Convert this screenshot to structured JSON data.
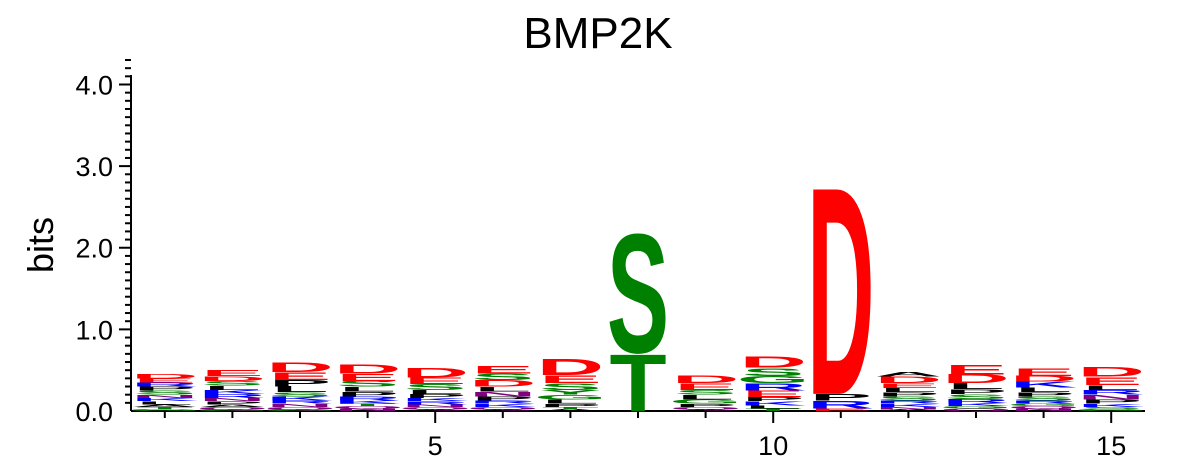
{
  "chart_data": {
    "type": "sequence-logo",
    "title": "BMP2K",
    "ylabel": "bits",
    "xlabel": "",
    "ylim": [
      0,
      4.3
    ],
    "xlim": [
      0.5,
      15.5
    ],
    "y_ticks": [
      0,
      1,
      2,
      3,
      4
    ],
    "y_tick_labels": [
      "0.0",
      "1.0",
      "2.0",
      "3.0",
      "4.0"
    ],
    "x_ticks": [
      5,
      10,
      15
    ],
    "x_tick_labels": [
      "5",
      "10",
      "15"
    ],
    "colors": {
      "acidic": "#ff0000",
      "polar": "#008000",
      "basic": "#0000ff",
      "hydrophobic": "#000000",
      "amide": "#800080"
    },
    "positions": [
      {
        "pos": 1,
        "letters": [
          [
            "G",
            0.02
          ],
          [
            "T",
            0.03
          ],
          [
            "A",
            0.03
          ],
          [
            "L",
            0.04
          ],
          [
            "K",
            0.04
          ],
          [
            "N",
            0.04
          ],
          [
            "S",
            0.05
          ],
          [
            "P",
            0.05
          ],
          [
            "R",
            0.05
          ],
          [
            "E",
            0.05
          ],
          [
            "D",
            0.06
          ]
        ]
      },
      {
        "pos": 2,
        "letters": [
          [
            "G",
            0.02
          ],
          [
            "Q",
            0.03
          ],
          [
            "A",
            0.03
          ],
          [
            "P",
            0.04
          ],
          [
            "N",
            0.04
          ],
          [
            "R",
            0.05
          ],
          [
            "K",
            0.05
          ],
          [
            "L",
            0.05
          ],
          [
            "S",
            0.06
          ],
          [
            "D",
            0.06
          ],
          [
            "E",
            0.07
          ]
        ]
      },
      {
        "pos": 3,
        "letters": [
          [
            "G",
            0.02
          ],
          [
            "Q",
            0.03
          ],
          [
            "N",
            0.04
          ],
          [
            "R",
            0.04
          ],
          [
            "K",
            0.05
          ],
          [
            "S",
            0.05
          ],
          [
            "L",
            0.07
          ],
          [
            "P",
            0.08
          ],
          [
            "E",
            0.1
          ],
          [
            "D",
            0.12
          ]
        ]
      },
      {
        "pos": 4,
        "letters": [
          [
            "N",
            0.03
          ],
          [
            "Q",
            0.03
          ],
          [
            "T",
            0.03
          ],
          [
            "K",
            0.04
          ],
          [
            "R",
            0.05
          ],
          [
            "P",
            0.06
          ],
          [
            "L",
            0.06
          ],
          [
            "S",
            0.07
          ],
          [
            "E",
            0.09
          ],
          [
            "D",
            0.11
          ]
        ]
      },
      {
        "pos": 5,
        "letters": [
          [
            "A",
            0.02
          ],
          [
            "Q",
            0.03
          ],
          [
            "N",
            0.03
          ],
          [
            "R",
            0.04
          ],
          [
            "K",
            0.04
          ],
          [
            "P",
            0.05
          ],
          [
            "L",
            0.05
          ],
          [
            "S",
            0.07
          ],
          [
            "E",
            0.08
          ],
          [
            "D",
            0.12
          ]
        ]
      },
      {
        "pos": 6,
        "letters": [
          [
            "A",
            0.02
          ],
          [
            "Q",
            0.03
          ],
          [
            "K",
            0.04
          ],
          [
            "R",
            0.04
          ],
          [
            "P",
            0.05
          ],
          [
            "N",
            0.06
          ],
          [
            "L",
            0.06
          ],
          [
            "D",
            0.08
          ],
          [
            "S",
            0.08
          ],
          [
            "E",
            0.1
          ]
        ]
      },
      {
        "pos": 7,
        "letters": [
          [
            "A",
            0.02
          ],
          [
            "T",
            0.03
          ],
          [
            "P",
            0.04
          ],
          [
            "L",
            0.05
          ],
          [
            "G",
            0.06
          ],
          [
            "Y",
            0.06
          ],
          [
            "S",
            0.08
          ],
          [
            "E",
            0.1
          ],
          [
            "D",
            0.2
          ]
        ]
      },
      {
        "pos": 8,
        "letters": [
          [
            "T",
            0.72
          ],
          [
            "S",
            1.5
          ]
        ]
      },
      {
        "pos": 9,
        "letters": [
          [
            "A",
            0.02
          ],
          [
            "Q",
            0.03
          ],
          [
            "P",
            0.04
          ],
          [
            "G",
            0.05
          ],
          [
            "L",
            0.06
          ],
          [
            "S",
            0.06
          ],
          [
            "E",
            0.08
          ],
          [
            "D",
            0.1
          ]
        ]
      },
      {
        "pos": 10,
        "letters": [
          [
            "T",
            0.03
          ],
          [
            "L",
            0.04
          ],
          [
            "K",
            0.05
          ],
          [
            "P",
            0.05
          ],
          [
            "E",
            0.08
          ],
          [
            "R",
            0.09
          ],
          [
            "G",
            0.09
          ],
          [
            "S",
            0.1
          ],
          [
            "D",
            0.14
          ]
        ]
      },
      {
        "pos": 11,
        "letters": [
          [
            "E",
            0.03
          ],
          [
            "R",
            0.1
          ],
          [
            "P",
            0.08
          ],
          [
            "D",
            2.62
          ]
        ]
      },
      {
        "pos": 12,
        "letters": [
          [
            "A",
            0.02
          ],
          [
            "N",
            0.03
          ],
          [
            "K",
            0.04
          ],
          [
            "R",
            0.04
          ],
          [
            "S",
            0.05
          ],
          [
            "P",
            0.05
          ],
          [
            "L",
            0.05
          ],
          [
            "E",
            0.06
          ],
          [
            "D",
            0.08
          ],
          [
            "A",
            0.06
          ]
        ]
      },
      {
        "pos": 13,
        "letters": [
          [
            "Q",
            0.03
          ],
          [
            "G",
            0.03
          ],
          [
            "K",
            0.04
          ],
          [
            "R",
            0.05
          ],
          [
            "S",
            0.06
          ],
          [
            "P",
            0.06
          ],
          [
            "L",
            0.07
          ],
          [
            "D",
            0.11
          ],
          [
            "E",
            0.12
          ]
        ]
      },
      {
        "pos": 14,
        "letters": [
          [
            "N",
            0.03
          ],
          [
            "Q",
            0.03
          ],
          [
            "G",
            0.03
          ],
          [
            "R",
            0.04
          ],
          [
            "S",
            0.05
          ],
          [
            "P",
            0.05
          ],
          [
            "L",
            0.06
          ],
          [
            "K",
            0.07
          ],
          [
            "D",
            0.07
          ],
          [
            "E",
            0.1
          ]
        ]
      },
      {
        "pos": 15,
        "letters": [
          [
            "G",
            0.02
          ],
          [
            "S",
            0.03
          ],
          [
            "K",
            0.04
          ],
          [
            "P",
            0.05
          ],
          [
            "N",
            0.06
          ],
          [
            "R",
            0.06
          ],
          [
            "L",
            0.06
          ],
          [
            "E",
            0.1
          ],
          [
            "D",
            0.12
          ]
        ]
      }
    ]
  }
}
